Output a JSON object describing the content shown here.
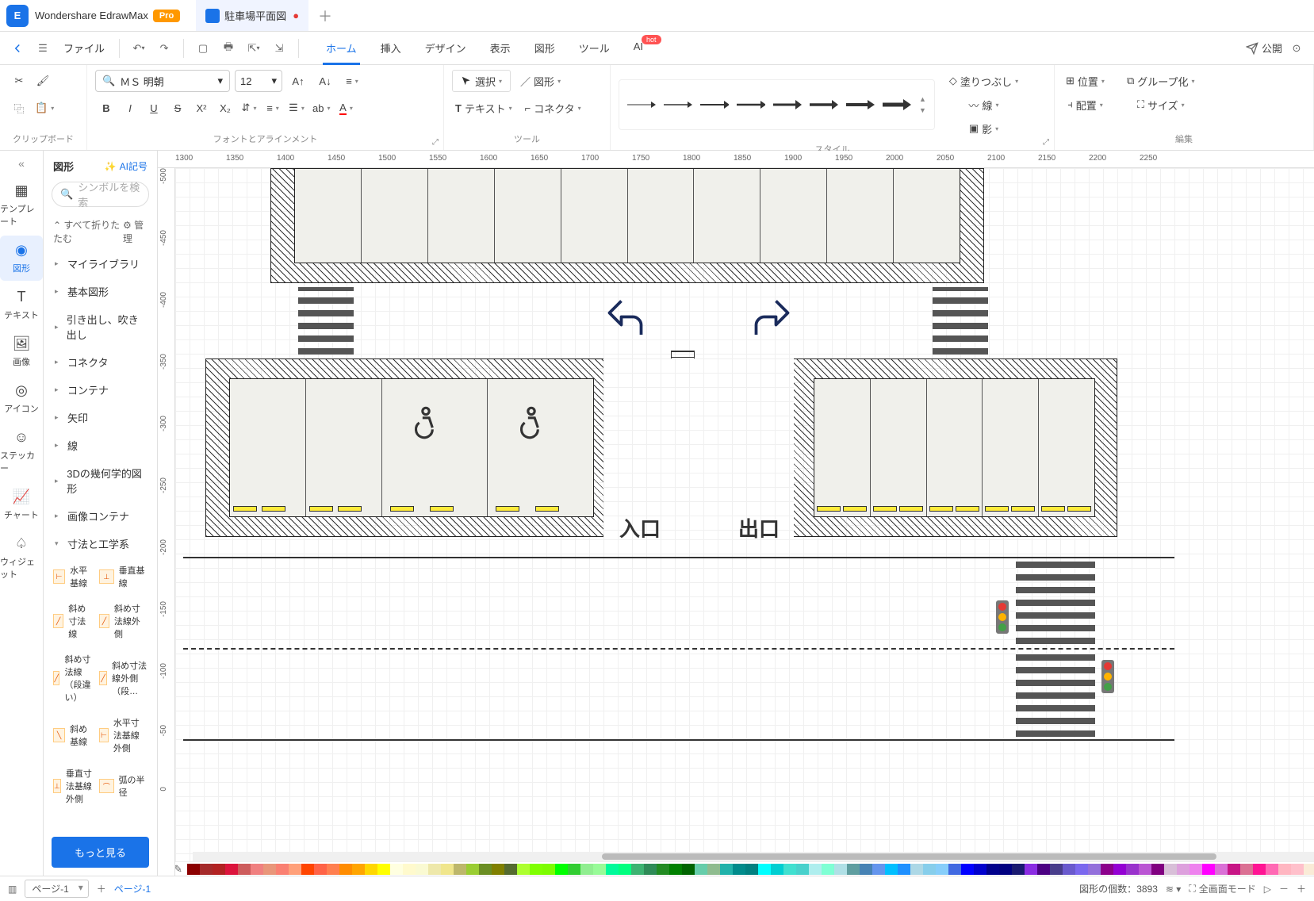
{
  "titlebar": {
    "app_name": "Wondershare EdrawMax",
    "pro": "Pro",
    "tab_name": "駐車場平面図"
  },
  "menubar": {
    "file": "ファイル",
    "tabs": [
      "ホーム",
      "挿入",
      "デザイン",
      "表示",
      "図形",
      "ツール",
      "AI"
    ],
    "hot": "hot",
    "publish": "公開"
  },
  "ribbon": {
    "font_name": "ＭＳ 明朝",
    "font_size": "12",
    "select": "選択",
    "shape": "図形",
    "text": "テキスト",
    "connector": "コネクタ",
    "fill": "塗りつぶし",
    "line": "線",
    "shadow": "影",
    "position": "位置",
    "align": "配置",
    "group": "グループ化",
    "size": "サイズ",
    "groups": {
      "clipboard": "クリップボード",
      "font": "フォントとアラインメント",
      "tool": "ツール",
      "style": "スタイル",
      "edit": "編集"
    }
  },
  "leftrail": {
    "items": [
      {
        "label": "テンプレート"
      },
      {
        "label": "図形"
      },
      {
        "label": "テキスト"
      },
      {
        "label": "画像"
      },
      {
        "label": "アイコン"
      },
      {
        "label": "ステッカー"
      },
      {
        "label": "チャート"
      },
      {
        "label": "ウィジェット"
      }
    ]
  },
  "shapes_panel": {
    "title": "図形",
    "ai": "AI記号",
    "search_placeholder": "シンボルを検索",
    "collapse_all": "すべて折りたたむ",
    "manage": "管理",
    "categories": [
      "マイライブラリ",
      "基本図形",
      "引き出し、吹き出し",
      "コネクタ",
      "コンテナ",
      "矢印",
      "線",
      "3Dの幾何学的図形",
      "画像コンテナ",
      "寸法と工学系"
    ],
    "dim_items": [
      "水平基線",
      "垂直基線",
      "斜め寸法線",
      "斜め寸法線外側",
      "斜め寸法線（段違い）",
      "斜め寸法線外側（段…",
      "斜め基線",
      "水平寸法基線外側",
      "垂直寸法基線外側",
      "弧の半径"
    ],
    "more": "もっと見る"
  },
  "canvas": {
    "h_ticks": [
      1300,
      1350,
      1400,
      1450,
      1500,
      1550,
      1600,
      1650,
      1700,
      1750,
      1800,
      1850,
      1900,
      1950,
      2000,
      2050,
      2100,
      2150,
      2200,
      2250
    ],
    "v_ticks": [
      -500,
      -450,
      -400,
      -350,
      -300,
      -250,
      -200,
      -150,
      -100,
      -50,
      0
    ],
    "entry": "入口",
    "exit": "出口",
    "colors": {
      "hatch": "#333333",
      "lot_bg": "#f0f0eb",
      "stopper": "#ffeb3b",
      "road": "#333333"
    }
  },
  "statusbar": {
    "page_select": "ページ-1",
    "page_tab": "ページ-1",
    "shape_count_label": "図形の個数：",
    "shape_count": "3893",
    "fullscreen": "全画面モード"
  },
  "colorbar": {
    "swatches": [
      "#8b0000",
      "#a52a2a",
      "#b22222",
      "#dc143c",
      "#cd5c5c",
      "#f08080",
      "#e9967a",
      "#fa8072",
      "#ffa07a",
      "#ff4500",
      "#ff6347",
      "#ff7f50",
      "#ff8c00",
      "#ffa500",
      "#ffd700",
      "#ffff00",
      "#ffffe0",
      "#fffacd",
      "#fafad2",
      "#eee8aa",
      "#f0e68c",
      "#bdb76b",
      "#9acd32",
      "#6b8e23",
      "#808000",
      "#556b2f",
      "#adff2f",
      "#7fff00",
      "#7cfc00",
      "#00ff00",
      "#32cd32",
      "#90ee90",
      "#98fb98",
      "#00fa9a",
      "#00ff7f",
      "#3cb371",
      "#2e8b57",
      "#228b22",
      "#008000",
      "#006400",
      "#66cdaa",
      "#8fbc8f",
      "#20b2aa",
      "#008b8b",
      "#008080",
      "#00ffff",
      "#00ced1",
      "#40e0d0",
      "#48d1cc",
      "#afeeee",
      "#7fffd4",
      "#b0e0e6",
      "#5f9ea0",
      "#4682b4",
      "#6495ed",
      "#00bfff",
      "#1e90ff",
      "#add8e6",
      "#87ceeb",
      "#87cefa",
      "#4169e1",
      "#0000ff",
      "#0000cd",
      "#00008b",
      "#000080",
      "#191970",
      "#8a2be2",
      "#4b0082",
      "#483d8b",
      "#6a5acd",
      "#7b68ee",
      "#9370db",
      "#8b008b",
      "#9400d3",
      "#9932cc",
      "#ba55d3",
      "#800080",
      "#d8bfd8",
      "#dda0dd",
      "#ee82ee",
      "#ff00ff",
      "#da70d6",
      "#c71585",
      "#db7093",
      "#ff1493",
      "#ff69b4",
      "#ffb6c1",
      "#ffc0cb",
      "#faebd7",
      "#f5f5dc",
      "#ffe4c4",
      "#ffebcd",
      "#f5deb3",
      "#fff8dc",
      "#d2b48c",
      "#bc8f8f",
      "#f4a460",
      "#daa520",
      "#b8860b",
      "#cd853f",
      "#d2691e",
      "#8b4513",
      "#a0522d",
      "#696969",
      "#808080",
      "#a9a9a9",
      "#c0c0c0",
      "#d3d3d3"
    ]
  }
}
